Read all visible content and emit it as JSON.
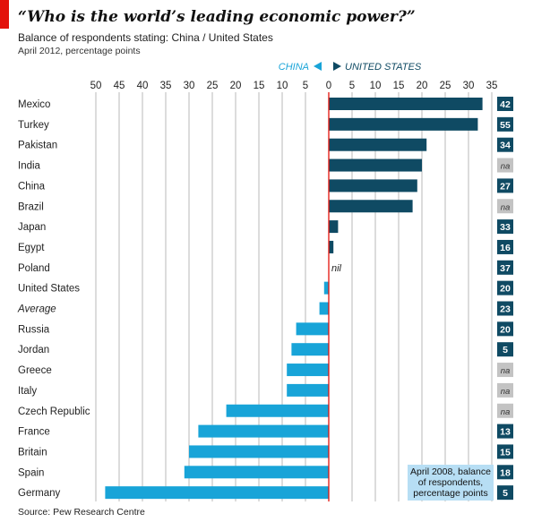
{
  "header": {
    "title": "“Who is the world’s leading economic power?”",
    "subtitle": "Balance of respondents stating: China / United States",
    "subtitle2": "April 2012, percentage points",
    "source": "Source: Pew Research Centre"
  },
  "colors": {
    "us": "#0f4a63",
    "china": "#18a4d8",
    "zero_line": "#e3120b",
    "grid": "#c9c9c9",
    "label_box_dark": "#0f4a63",
    "label_box_na": "#c3c3c3",
    "annotation_box": "#b7def4",
    "accent_red": "#e3120b"
  },
  "chart_data": {
    "type": "bar",
    "orientation": "horizontal",
    "title": "“Who is the world’s leading economic power?”",
    "direction_labels": {
      "left": "CHINA",
      "right": "UNITED STATES"
    },
    "x_ticks": [
      "50",
      "45",
      "40",
      "35",
      "30",
      "25",
      "20",
      "15",
      "10",
      "5",
      "0",
      "5",
      "10",
      "15",
      "20",
      "25",
      "30",
      "35"
    ],
    "xlim": [
      -50,
      35
    ],
    "grid": true,
    "categories": [
      "Mexico",
      "Turkey",
      "Pakistan",
      "India",
      "China",
      "Brazil",
      "Japan",
      "Egypt",
      "Poland",
      "United States",
      "Average",
      "Russia",
      "Jordan",
      "Greece",
      "Italy",
      "Czech Republic",
      "France",
      "Britain",
      "Spain",
      "Germany"
    ],
    "italic_categories": [
      "Average"
    ],
    "values": [
      33,
      32,
      21,
      20,
      19,
      18,
      2,
      1,
      0,
      -1,
      -2,
      -7,
      -8,
      -9,
      -9,
      -22,
      -28,
      -30,
      -31,
      -48
    ],
    "zero_label": "nil",
    "april_2008": [
      "42",
      "55",
      "34",
      "na",
      "27",
      "na",
      "33",
      "16",
      "37",
      "20",
      "23",
      "20",
      "5",
      "na",
      "na",
      "na",
      "13",
      "15",
      "18",
      "5"
    ],
    "annotation": "April 2008, balance of respondents, percentage points"
  }
}
